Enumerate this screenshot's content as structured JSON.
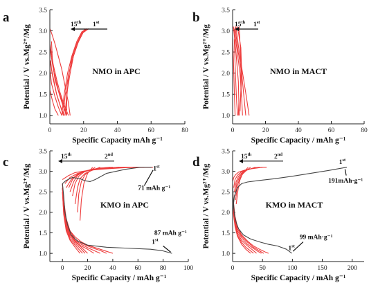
{
  "chart_data": [
    {
      "panel": "a",
      "type": "line",
      "title": "NMO in APC",
      "xlabel": "Specific Capacity mAh g⁻¹",
      "ylabel": "Potential / V vs.Mg²⁺/Mg",
      "xlim": [
        0,
        80
      ],
      "ylim": [
        0.8,
        3.5
      ],
      "xticks": [
        0,
        20,
        40,
        60,
        80
      ],
      "yticks": [
        1.0,
        1.5,
        2.0,
        2.5,
        3.0,
        3.5
      ],
      "grid": false,
      "cycle_start_label": "1st",
      "cycle_end_label": "15th",
      "series": [
        {
          "x": [
            0,
            2,
            4,
            6,
            8,
            10,
            11
          ],
          "y": [
            2.7,
            2.2,
            1.85,
            1.55,
            1.3,
            1.1,
            1.0
          ]
        },
        {
          "x": [
            0,
            2,
            5,
            8,
            10
          ],
          "y": [
            2.6,
            2.1,
            1.6,
            1.25,
            1.0
          ]
        },
        {
          "x": [
            0,
            2,
            4,
            6,
            8.5
          ],
          "y": [
            2.3,
            1.85,
            1.5,
            1.25,
            1.0
          ]
        },
        {
          "x": [
            0,
            1,
            3,
            5,
            7
          ],
          "y": [
            2.1,
            1.75,
            1.45,
            1.2,
            1.0
          ]
        },
        {
          "x": [
            0,
            1.5,
            3,
            5
          ],
          "y": [
            1.6,
            1.35,
            1.15,
            1.0
          ]
        },
        {
          "x": [
            12,
            11,
            9,
            7,
            5,
            3,
            1,
            0
          ],
          "y": [
            1.0,
            1.3,
            1.7,
            2.1,
            2.4,
            2.7,
            2.95,
            3.05
          ]
        },
        {
          "x": [
            10,
            10,
            11,
            13,
            16,
            19,
            21
          ],
          "y": [
            1.0,
            1.4,
            1.9,
            2.35,
            2.7,
            2.95,
            3.05
          ]
        },
        {
          "x": [
            9,
            10,
            12,
            14,
            17,
            20,
            22
          ],
          "y": [
            1.0,
            1.5,
            2.0,
            2.4,
            2.75,
            2.98,
            3.05
          ]
        },
        {
          "x": [
            8,
            9,
            11,
            13.5,
            16.5,
            19.5,
            23
          ],
          "y": [
            1.0,
            1.45,
            1.95,
            2.35,
            2.7,
            2.95,
            3.05
          ]
        },
        {
          "x": [
            7,
            8.5,
            10.5,
            13,
            16,
            19,
            22
          ],
          "y": [
            1.0,
            1.5,
            2.0,
            2.4,
            2.75,
            2.98,
            3.05
          ]
        },
        {
          "x": [
            8,
            6,
            4,
            2.5,
            1,
            0.5
          ],
          "y": [
            1.0,
            1.25,
            1.5,
            1.8,
            2.1,
            2.3
          ]
        },
        {
          "x": [
            10,
            8,
            6,
            3,
            1.5,
            1
          ],
          "y": [
            1.0,
            1.2,
            1.45,
            1.85,
            2.3,
            2.75
          ]
        }
      ]
    },
    {
      "panel": "b",
      "type": "line",
      "title": "NMO in MACT",
      "xlabel": "Specific Capacity / mAh g⁻¹",
      "ylabel": "Potential / V vs.Mg²⁺/Mg",
      "xlim": [
        0,
        80
      ],
      "ylim": [
        0.8,
        3.5
      ],
      "xticks": [
        0,
        20,
        40,
        60,
        80
      ],
      "yticks": [
        1.0,
        1.5,
        2.0,
        2.5,
        3.0,
        3.5
      ],
      "grid": false,
      "cycle_start_label": "1st",
      "cycle_end_label": "15th",
      "series": [
        {
          "x": [
            0.5,
            2,
            3.5,
            3.8,
            3.5
          ],
          "y": [
            3.1,
            2.5,
            1.8,
            1.3,
            1.0
          ]
        },
        {
          "x": [
            1,
            2.5,
            4.5,
            5.5,
            6
          ],
          "y": [
            3.05,
            2.6,
            2.0,
            1.4,
            1.0
          ]
        },
        {
          "x": [
            1.5,
            3,
            5.5,
            7,
            8
          ],
          "y": [
            3.1,
            2.6,
            2.0,
            1.4,
            1.0
          ]
        },
        {
          "x": [
            2,
            4,
            6.5,
            8.5,
            10
          ],
          "y": [
            3.1,
            2.5,
            1.9,
            1.4,
            1.0
          ]
        },
        {
          "x": [
            3,
            5,
            5.5,
            5,
            4
          ],
          "y": [
            3.1,
            2.6,
            2.0,
            1.5,
            1.0
          ]
        },
        {
          "x": [
            1,
            1.5,
            2,
            2.5,
            3
          ],
          "y": [
            2.8,
            2.2,
            1.7,
            1.3,
            1.0
          ]
        },
        {
          "x": [
            0,
            0.5,
            1,
            1.5
          ],
          "y": [
            2.9,
            2.3,
            1.6,
            1.0
          ]
        },
        {
          "x": [
            4,
            4.5,
            5,
            5,
            4.5
          ],
          "y": [
            3.1,
            2.7,
            2.2,
            1.6,
            1.1
          ]
        }
      ]
    },
    {
      "panel": "c",
      "type": "line",
      "title": "KMO in APC",
      "xlabel": "Specific Capacity / mAh g⁻¹",
      "ylabel": "Potential / V vs.Mg²⁺/Mg",
      "xlim": [
        -10,
        100
      ],
      "ylim": [
        0.8,
        3.5
      ],
      "xticks": [
        0,
        20,
        40,
        60,
        80,
        100
      ],
      "yticks": [
        1.0,
        1.5,
        2.0,
        2.5,
        3.0,
        3.5
      ],
      "grid": false,
      "cycle_start_label": "1st",
      "cycle_second_label": "2nd",
      "cycle_end_label": "15th",
      "first_discharge_label": "87 mAh g⁻¹",
      "first_charge_label": "71 mAh g⁻¹",
      "first_discharge_capacity": 87,
      "first_charge_capacity": 71,
      "first_cycle": [
        {
          "x": [
            0,
            1,
            2,
            4,
            7,
            12,
            20,
            35,
            55,
            70,
            80,
            87
          ],
          "y": [
            2.7,
            2.4,
            2.0,
            1.7,
            1.45,
            1.3,
            1.2,
            1.15,
            1.12,
            1.1,
            1.06,
            1.0
          ]
        },
        {
          "x": [
            0,
            3,
            8,
            14,
            18,
            22,
            26,
            35,
            50,
            62,
            71
          ],
          "y": [
            2.7,
            2.78,
            2.85,
            2.82,
            2.77,
            2.75,
            2.8,
            2.95,
            3.05,
            3.1,
            3.1
          ]
        }
      ],
      "series": [
        {
          "x": [
            0,
            1,
            3,
            6,
            10,
            15,
            20,
            25,
            30,
            35,
            40
          ],
          "y": [
            2.6,
            2.2,
            1.8,
            1.55,
            1.4,
            1.28,
            1.2,
            1.15,
            1.1,
            1.05,
            1.0
          ]
        },
        {
          "x": [
            0,
            1,
            3,
            6,
            10,
            15,
            20,
            25,
            30,
            35
          ],
          "y": [
            2.7,
            2.3,
            1.85,
            1.55,
            1.35,
            1.25,
            1.18,
            1.12,
            1.07,
            1.0
          ]
        },
        {
          "x": [
            0,
            1,
            3,
            6,
            10,
            15,
            20,
            25,
            30
          ],
          "y": [
            2.6,
            2.2,
            1.8,
            1.5,
            1.32,
            1.22,
            1.14,
            1.07,
            1.0
          ]
        },
        {
          "x": [
            0,
            1,
            3,
            6,
            10,
            15,
            20,
            25
          ],
          "y": [
            2.7,
            2.2,
            1.75,
            1.48,
            1.3,
            1.18,
            1.1,
            1.0
          ]
        },
        {
          "x": [
            0,
            1,
            3,
            6,
            10,
            15,
            20
          ],
          "y": [
            2.6,
            2.1,
            1.7,
            1.45,
            1.28,
            1.15,
            1.0
          ]
        },
        {
          "x": [
            0,
            1,
            3,
            6,
            10,
            15,
            18
          ],
          "y": [
            2.6,
            2.05,
            1.65,
            1.4,
            1.24,
            1.1,
            1.0
          ]
        },
        {
          "x": [
            0,
            1,
            3,
            6,
            10,
            16
          ],
          "y": [
            2.5,
            2.0,
            1.6,
            1.35,
            1.2,
            1.0
          ]
        },
        {
          "x": [
            0,
            1,
            3,
            6,
            10,
            14
          ],
          "y": [
            2.5,
            1.95,
            1.55,
            1.32,
            1.15,
            1.0
          ]
        },
        {
          "x": [
            0,
            5,
            10,
            20,
            30,
            40,
            50,
            60,
            70,
            72
          ],
          "y": [
            2.8,
            2.9,
            2.97,
            3.02,
            3.05,
            3.07,
            3.09,
            3.1,
            3.1,
            3.1
          ]
        },
        {
          "x": [
            2,
            6,
            12,
            20,
            30,
            40,
            50,
            60,
            65
          ],
          "y": [
            2.7,
            2.85,
            2.95,
            3.02,
            3.06,
            3.08,
            3.1,
            3.1,
            3.1
          ]
        },
        {
          "x": [
            3,
            7,
            12,
            18,
            25,
            35,
            45,
            55
          ],
          "y": [
            2.6,
            2.8,
            2.93,
            3.0,
            3.05,
            3.08,
            3.1,
            3.1
          ]
        },
        {
          "x": [
            5,
            8,
            12,
            18,
            25,
            35,
            45
          ],
          "y": [
            2.6,
            2.8,
            2.92,
            3.0,
            3.05,
            3.08,
            3.1
          ]
        },
        {
          "x": [
            6,
            9,
            12,
            16,
            22,
            30,
            40
          ],
          "y": [
            2.5,
            2.75,
            2.9,
            2.98,
            3.04,
            3.08,
            3.1
          ]
        },
        {
          "x": [
            8,
            10,
            13,
            17,
            22,
            30,
            38
          ],
          "y": [
            2.4,
            2.7,
            2.88,
            2.98,
            3.04,
            3.08,
            3.1
          ]
        },
        {
          "x": [
            10,
            12,
            14,
            18,
            24,
            30
          ],
          "y": [
            2.2,
            2.6,
            2.82,
            2.95,
            3.03,
            3.1
          ]
        },
        {
          "x": [
            12,
            13,
            15,
            18,
            22,
            26
          ],
          "y": [
            2.0,
            2.45,
            2.75,
            2.92,
            3.02,
            3.1
          ]
        },
        {
          "x": [
            14,
            15,
            17,
            20,
            24
          ],
          "y": [
            1.8,
            2.3,
            2.7,
            2.95,
            3.1
          ]
        }
      ]
    },
    {
      "panel": "d",
      "type": "line",
      "title": "KMO in MACT",
      "xlabel": "Specific Capacity / mAh g⁻¹",
      "ylabel": "Potential / V vs.Mg²⁺/Mg",
      "xlim": [
        0,
        220
      ],
      "ylim": [
        0.8,
        3.5
      ],
      "xticks": [
        0,
        50,
        100,
        150,
        200
      ],
      "yticks": [
        1.0,
        1.5,
        2.0,
        2.5,
        3.0,
        3.5
      ],
      "grid": false,
      "cycle_start_label": "1st",
      "cycle_second_label": "2nd",
      "cycle_end_label": "15th",
      "first_charge_label": "191mAh·g⁻¹",
      "first_discharge_label": "99 mAh·g⁻¹",
      "first_discharge_capacity": 99,
      "first_charge_capacity": 191,
      "first_cycle": [
        {
          "x": [
            0,
            1,
            3,
            6,
            10,
            18,
            30,
            45,
            60,
            75,
            90,
            99
          ],
          "y": [
            2.7,
            2.3,
            1.95,
            1.75,
            1.6,
            1.45,
            1.35,
            1.28,
            1.22,
            1.18,
            1.1,
            1.0
          ]
        },
        {
          "x": [
            0,
            3,
            8,
            15,
            25,
            40,
            70,
            100,
            130,
            160,
            191
          ],
          "y": [
            2.0,
            2.4,
            2.6,
            2.7,
            2.74,
            2.77,
            2.82,
            2.88,
            2.95,
            3.02,
            3.1
          ]
        }
      ],
      "series": [
        {
          "x": [
            0,
            1,
            4,
            8,
            15,
            25,
            35,
            45,
            55,
            60
          ],
          "y": [
            2.7,
            2.3,
            1.9,
            1.65,
            1.45,
            1.3,
            1.18,
            1.1,
            1.03,
            1.0
          ]
        },
        {
          "x": [
            0,
            1,
            4,
            8,
            15,
            25,
            35,
            45,
            52
          ],
          "y": [
            2.6,
            2.2,
            1.85,
            1.6,
            1.42,
            1.27,
            1.15,
            1.06,
            1.0
          ]
        },
        {
          "x": [
            0,
            1,
            4,
            8,
            15,
            25,
            35,
            42,
            48
          ],
          "y": [
            2.6,
            2.2,
            1.8,
            1.55,
            1.38,
            1.22,
            1.12,
            1.05,
            1.0
          ]
        },
        {
          "x": [
            0,
            1,
            4,
            8,
            15,
            25,
            32,
            40
          ],
          "y": [
            2.5,
            2.1,
            1.75,
            1.5,
            1.32,
            1.18,
            1.1,
            1.0
          ]
        },
        {
          "x": [
            0,
            1,
            4,
            8,
            15,
            22,
            30,
            35
          ],
          "y": [
            2.5,
            2.05,
            1.7,
            1.45,
            1.27,
            1.15,
            1.06,
            1.0
          ]
        },
        {
          "x": [
            0,
            1,
            4,
            8,
            15,
            22,
            30
          ],
          "y": [
            2.4,
            2.0,
            1.65,
            1.42,
            1.22,
            1.1,
            1.0
          ]
        },
        {
          "x": [
            0,
            2,
            5,
            10,
            20,
            30,
            40,
            50,
            57
          ],
          "y": [
            2.75,
            2.85,
            2.92,
            2.98,
            3.03,
            3.06,
            3.08,
            3.1,
            3.1
          ]
        },
        {
          "x": [
            2,
            4,
            8,
            14,
            22,
            32,
            42,
            50
          ],
          "y": [
            2.6,
            2.8,
            2.9,
            2.98,
            3.03,
            3.07,
            3.09,
            3.1
          ]
        },
        {
          "x": [
            3,
            6,
            10,
            15,
            22,
            30,
            38,
            45
          ],
          "y": [
            2.5,
            2.75,
            2.88,
            2.96,
            3.02,
            3.06,
            3.09,
            3.1
          ]
        },
        {
          "x": [
            4,
            7,
            11,
            16,
            22,
            30,
            38
          ],
          "y": [
            2.4,
            2.7,
            2.85,
            2.95,
            3.02,
            3.06,
            3.1
          ]
        },
        {
          "x": [
            5,
            8,
            12,
            17,
            23,
            30
          ],
          "y": [
            2.3,
            2.65,
            2.83,
            2.94,
            3.02,
            3.1
          ]
        },
        {
          "x": [
            6,
            9,
            12,
            16,
            21,
            26
          ],
          "y": [
            2.2,
            2.55,
            2.78,
            2.92,
            3.02,
            3.1
          ]
        }
      ]
    }
  ]
}
